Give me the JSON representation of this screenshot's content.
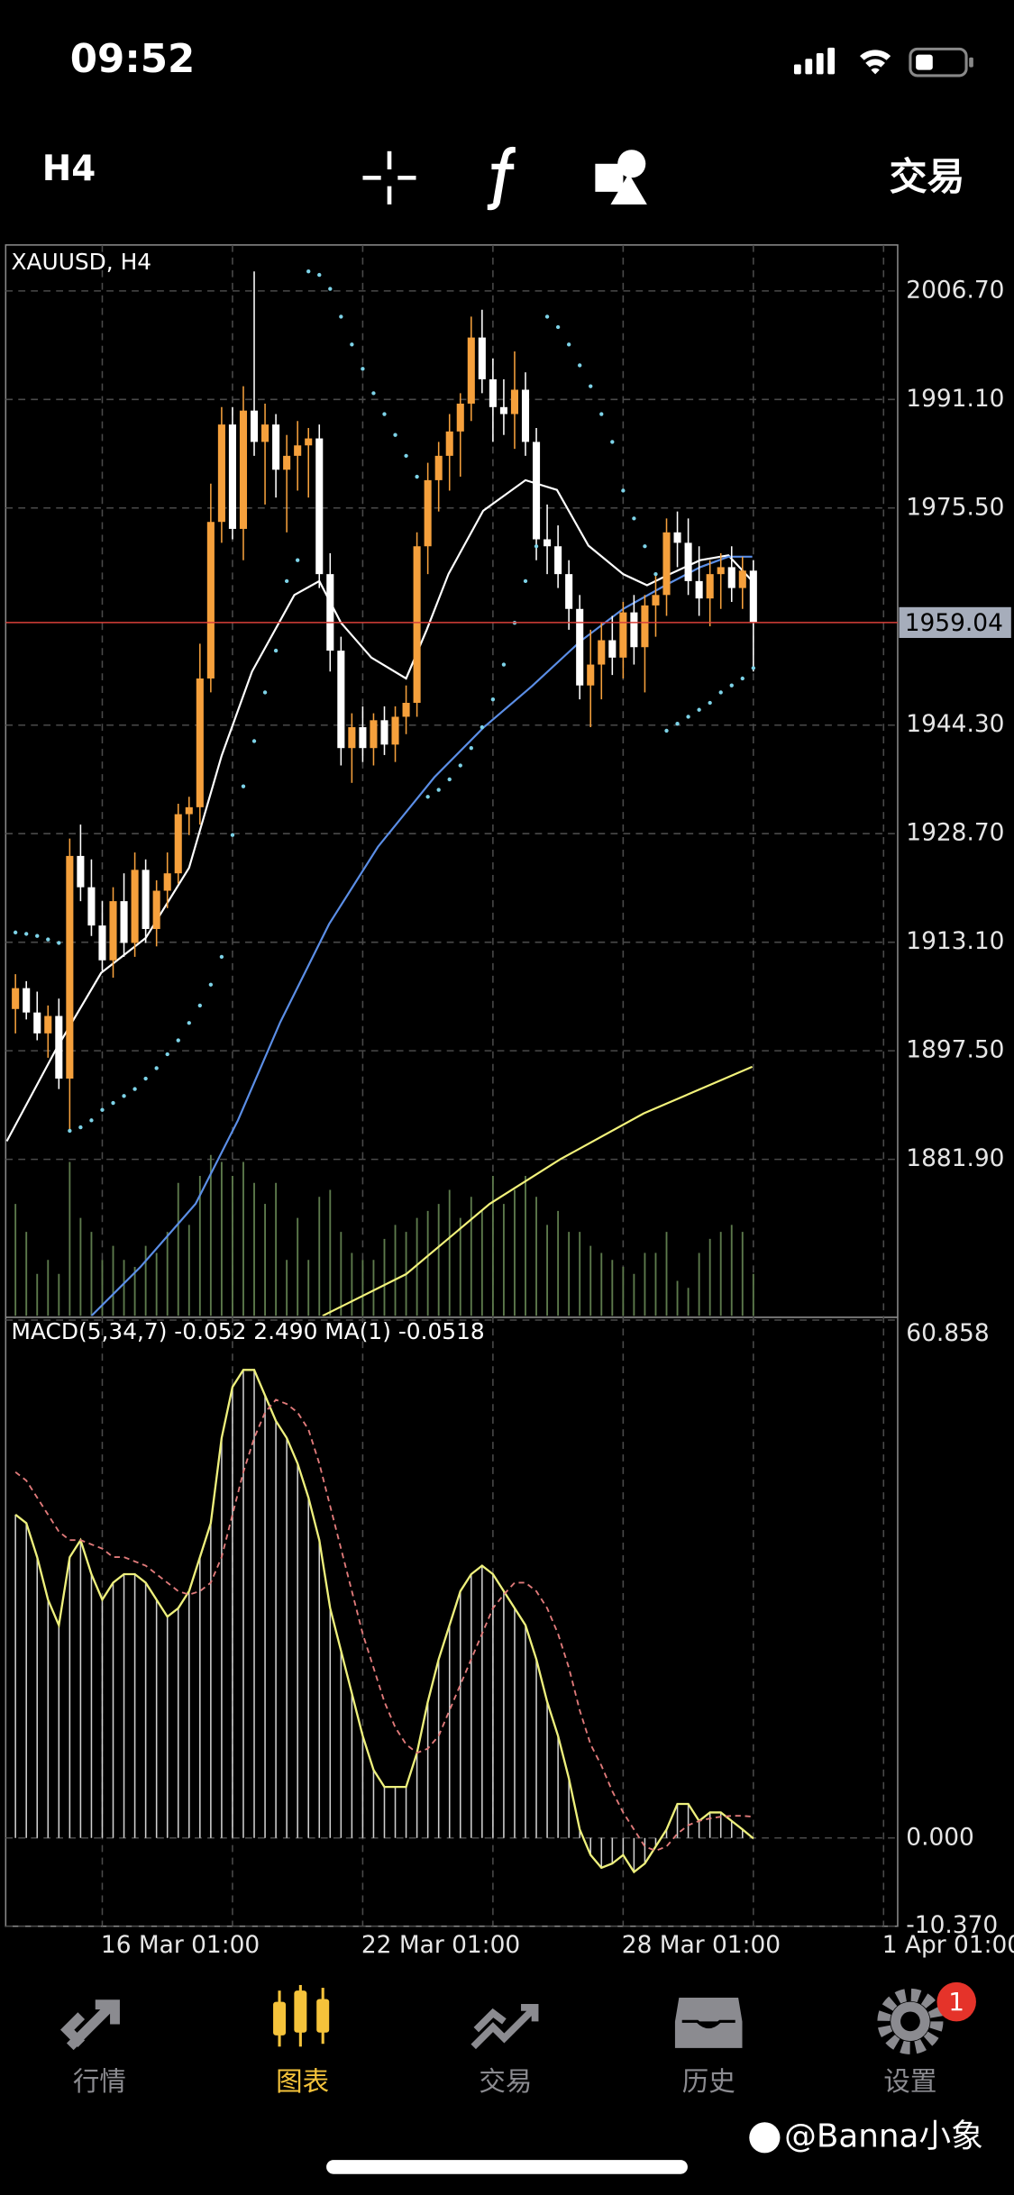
{
  "status_bar": {
    "time": "09:52"
  },
  "toolbar": {
    "timeframe": "H4",
    "trade": "交易"
  },
  "chart_data": [
    {
      "type": "candlestick",
      "title": "XAUUSD, H4",
      "xlim": [
        -0.9,
        81.3
      ],
      "ylim": [
        1859.4,
        2013.3
      ],
      "yticks": [
        {
          "value": 2006.7,
          "label": "2006.70"
        },
        {
          "value": 1991.1,
          "label": "1991.10"
        },
        {
          "value": 1975.5,
          "label": "1975.50"
        },
        {
          "value": 1944.3,
          "label": "1944.30"
        },
        {
          "value": 1928.7,
          "label": "1928.70"
        },
        {
          "value": 1913.1,
          "label": "1913.10"
        },
        {
          "value": 1897.5,
          "label": "1897.50"
        },
        {
          "value": 1881.9,
          "label": "1881.90"
        }
      ],
      "grid": true,
      "last_price": 1959.04,
      "last_price_color": "#d9403a",
      "up_color": "#f5a03c",
      "down_color": "#ffffff",
      "open": [
        1903.5,
        1906.5,
        1903,
        1900,
        1902.5,
        1893.5,
        1925.5,
        1921,
        1915.5,
        1910.5,
        1919,
        1913,
        1923.5,
        1915,
        1920.5,
        1923,
        1931.5,
        1932.5,
        1951,
        1973.5,
        1987.5,
        1972.5,
        1989.5,
        1985,
        1987.5,
        1981,
        1983,
        1984.5,
        1985.5,
        1966,
        1955,
        1941,
        1944,
        1941,
        1945,
        1941.5,
        1945.5,
        1947.5,
        1970,
        1979.5,
        1983,
        1986.5,
        1990.5,
        2000,
        1994,
        1990,
        1989,
        1992.5,
        1985,
        1971,
        1970,
        1966,
        1961,
        1950,
        1953,
        1956.5,
        1954,
        1960.5,
        1955.5,
        1961.5,
        1963,
        1972,
        1970.5,
        1965,
        1962.5,
        1966,
        1967,
        1964,
        1966.5
      ],
      "high": [
        1908.5,
        1907.5,
        1906,
        1904,
        1905,
        1928,
        1930,
        1925,
        1919,
        1921,
        1923,
        1926,
        1925,
        1922,
        1926,
        1933,
        1934,
        1956,
        1979,
        1990,
        1990,
        1993,
        2009.5,
        1990.5,
        1989,
        1986,
        1988,
        1987,
        1987.5,
        1969,
        1957,
        1946,
        1947,
        1946,
        1947,
        1947,
        1950,
        1972,
        1982,
        1985,
        1989,
        1992,
        2003,
        2004,
        1997,
        1994,
        1998,
        1995,
        1987,
        1976,
        1973,
        1968,
        1963,
        1958,
        1959,
        1960,
        1962,
        1963,
        1963,
        1966,
        1974,
        1975,
        1974,
        1970,
        1968,
        1969,
        1970,
        1968.5,
        1968
      ],
      "low": [
        1900,
        1902,
        1899,
        1896.5,
        1892,
        1886,
        1919,
        1914,
        1909,
        1908,
        1911,
        1911,
        1913,
        1912.5,
        1918,
        1921.5,
        1928.5,
        1930,
        1949,
        1970.5,
        1971,
        1968,
        1983,
        1976,
        1977,
        1972,
        1978,
        1977,
        1964,
        1952,
        1938.5,
        1936,
        1939,
        1938.5,
        1940,
        1939,
        1943,
        1945.5,
        1966,
        1975,
        1978,
        1980,
        1988,
        1992,
        1985,
        1986,
        1984,
        1983,
        1968,
        1966,
        1964,
        1958,
        1948,
        1944,
        1948,
        1951.5,
        1951,
        1953,
        1949,
        1957,
        1960,
        1967,
        1963,
        1960,
        1958.5,
        1961,
        1962,
        1961,
        1952
      ],
      "close": [
        1906.5,
        1903,
        1900,
        1902.5,
        1893.5,
        1925.5,
        1921,
        1915.5,
        1910.5,
        1919,
        1913,
        1923.5,
        1915,
        1920.5,
        1923,
        1931.5,
        1932.5,
        1951,
        1973.5,
        1987.5,
        1972.5,
        1989.5,
        1985,
        1987.5,
        1981,
        1983,
        1984.5,
        1985.5,
        1966,
        1955,
        1941,
        1944,
        1941,
        1945,
        1941.5,
        1945.5,
        1947.5,
        1970,
        1979.5,
        1983,
        1986.5,
        1990.5,
        2000,
        1994,
        1990,
        1989,
        1992.5,
        1985,
        1971,
        1970,
        1966,
        1961,
        1950,
        1953,
        1956.5,
        1954,
        1960.5,
        1955.5,
        1961.5,
        1963,
        1972,
        1970.5,
        1965,
        1962.5,
        1966,
        1967,
        1964,
        1966.5,
        1959.04
      ],
      "series": [
        {
          "color": "#ffffff",
          "x": [
            -0.8,
            3.7,
            7.9,
            12,
            16,
            19,
            21.8,
            25.7,
            28,
            30,
            32.8,
            36,
            37.9,
            39.9,
            43.1,
            47,
            49.9,
            52.8,
            56,
            58.2,
            60.3,
            63.1,
            65.7,
            67.9
          ],
          "values": [
            1884.5,
            1897.6,
            1908.7,
            1913.7,
            1923.8,
            1939.9,
            1952,
            1963,
            1965,
            1959,
            1954,
            1951,
            1958,
            1966,
            1975.1,
            1979.5,
            1978.1,
            1970.1,
            1966,
            1964.4,
            1966,
            1968,
            1968.7,
            1965
          ]
        },
        {
          "color": "#5b8ee6",
          "x": [
            7,
            11.5,
            16.6,
            20.5,
            24.4,
            28.9,
            33.4,
            38.6,
            43.1,
            47.6,
            52.1,
            56,
            59.9,
            63.1,
            65.7,
            67.9
          ],
          "values": [
            1859.4,
            1866.4,
            1875.5,
            1887.5,
            1901.6,
            1915.7,
            1926.8,
            1936.8,
            1943.9,
            1949.9,
            1956.4,
            1961,
            1964.4,
            1967,
            1968.5,
            1968.5
          ]
        },
        {
          "color": "#f2f27a",
          "x": [
            28.3,
            36,
            43.7,
            50.2,
            57.9,
            67.9
          ],
          "values": [
            1859.4,
            1865.4,
            1875.5,
            1881.9,
            1888.5,
            1895.2
          ]
        }
      ],
      "sar": {
        "color": "#7dd3e8",
        "values": [
          1914.5,
          1914.3,
          1914,
          1913.5,
          1913,
          1886,
          1886.5,
          1887.5,
          1889,
          1890,
          1891,
          1892,
          1893.5,
          1895,
          1897,
          1899,
          1901.5,
          1904,
          1907,
          1911,
          1928.5,
          1935.5,
          1942,
          1949,
          1955,
          1965,
          1968,
          2009.5,
          2009,
          2007,
          2003,
          1999,
          1995.5,
          1992,
          1989,
          1986,
          1983,
          1980,
          1934,
          1935,
          1936.5,
          1938.5,
          1941,
          1944,
          1948,
          1953,
          1959,
          1965,
          1970,
          2003,
          2001.5,
          1999,
          1996,
          1993,
          1989,
          1985,
          1978,
          1974,
          1970,
          1966,
          1943.5,
          1944.5,
          1945.5,
          1946.5,
          1947.5,
          1949,
          1950,
          1951,
          1952.5
        ]
      },
      "volume": {
        "color": "#5d7a4c",
        "ylim": [
          0,
          765
        ],
        "values": [
          80,
          60,
          30,
          40,
          30,
          110,
          70,
          60,
          40,
          50,
          40,
          35,
          50,
          45,
          60,
          95,
          65,
          100,
          115,
          110,
          100,
          110,
          95,
          80,
          95,
          40,
          70,
          40,
          85,
          90,
          60,
          45,
          40,
          40,
          55,
          65,
          60,
          70,
          75,
          80,
          90,
          70,
          85,
          75,
          100,
          80,
          90,
          100,
          85,
          65,
          75,
          60,
          60,
          50,
          45,
          40,
          35,
          30,
          45,
          45,
          60,
          25,
          20,
          45,
          55,
          60,
          65,
          60,
          30
        ]
      }
    },
    {
      "type": "macd",
      "title": "MACD(5,34,7) -0.052 2.490 MA(1) -0.0518",
      "xlim": [
        -0.9,
        81.3
      ],
      "ylim": [
        -10.37,
        60.858
      ],
      "yticks": [
        60.858,
        {
          "value": 0,
          "label": "0.000"
        },
        {
          "value": -10.37,
          "label": "-10.370"
        }
      ],
      "grid": true,
      "xticks": [
        {
          "value": 8,
          "label": "16 Mar 01:00"
        },
        {
          "value": 32,
          "label": "22 Mar 01:00"
        },
        {
          "value": 56,
          "label": "28 Mar 01:00"
        },
        {
          "value": 80,
          "label": "1 Apr 01:00"
        }
      ],
      "histogram": {
        "color": "#cfcfcf",
        "values": [
          38,
          37,
          33,
          28,
          25,
          33,
          35,
          31,
          28,
          30,
          31,
          31,
          30,
          28,
          26,
          27,
          29,
          33,
          37,
          47,
          53,
          55,
          55,
          52,
          49,
          47,
          44,
          40,
          35,
          27,
          22,
          17,
          12,
          8,
          6,
          6,
          6,
          10,
          16,
          21,
          25,
          29,
          31,
          32,
          31,
          29,
          27,
          25,
          21,
          16,
          12,
          7,
          1,
          -2,
          -3.5,
          -3,
          -2,
          -4,
          -3,
          -1,
          1,
          4,
          4,
          2,
          3,
          3,
          2,
          1,
          -0.052
        ]
      },
      "line_color": "#eef07c",
      "signal": {
        "color": "#e07a7a",
        "values": [
          43,
          42,
          40,
          38,
          36,
          35,
          35,
          34.5,
          34,
          33,
          33,
          32.5,
          32,
          31,
          30,
          29,
          28.6,
          29,
          30,
          33,
          38,
          43,
          47,
          50,
          51.5,
          51,
          50,
          48,
          44,
          39,
          34,
          29,
          24,
          20,
          16,
          13,
          11,
          10,
          10.5,
          12,
          15,
          18,
          21,
          24,
          27,
          28.6,
          30,
          30,
          29,
          27,
          24,
          20,
          15,
          11,
          8.5,
          5.5,
          3,
          1,
          -1,
          -1.5,
          -1,
          0.5,
          1.5,
          2,
          2.3,
          2.5,
          2.6,
          2.6,
          2.49
        ]
      }
    }
  ],
  "tab_bar": {
    "tabs": [
      "行情",
      "图表",
      "交易",
      "历史",
      "设置"
    ],
    "badge": 1
  },
  "watermark": "@Banna小象"
}
